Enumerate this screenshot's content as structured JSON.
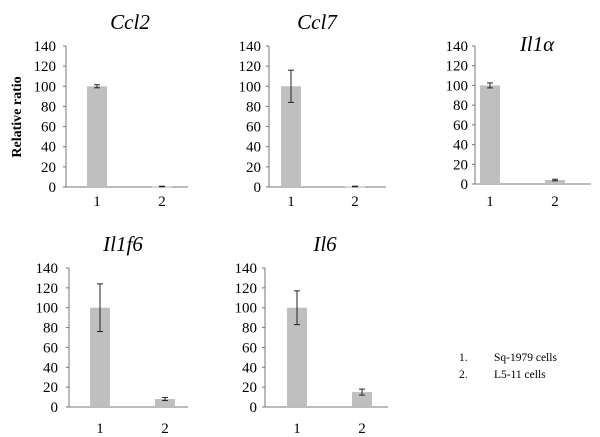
{
  "ylabel": "Relative ratio",
  "legend": [
    {
      "num": "1.",
      "label": "Sq-1979 cells"
    },
    {
      "num": "2.",
      "label": "L5-11 cells"
    }
  ],
  "chart_data": [
    {
      "type": "bar",
      "title": "Ccl2",
      "categories": [
        "1",
        "2"
      ],
      "values": [
        100,
        0.5
      ],
      "errors": [
        1.5,
        0.3
      ],
      "ylim": [
        0,
        140
      ],
      "ticks": [
        0,
        20,
        40,
        60,
        80,
        100,
        120,
        140
      ],
      "bar_color": "#bfbfbf"
    },
    {
      "type": "bar",
      "title": "Ccl7",
      "categories": [
        "1",
        "2"
      ],
      "values": [
        100,
        0.5
      ],
      "errors": [
        16,
        0.3
      ],
      "ylim": [
        0,
        140
      ],
      "ticks": [
        0,
        20,
        40,
        60,
        80,
        100,
        120,
        140
      ],
      "bar_color": "#bfbfbf"
    },
    {
      "type": "bar",
      "title": "Il1α",
      "categories": [
        "1",
        "2"
      ],
      "values": [
        100,
        4
      ],
      "errors": [
        2.5,
        0.8
      ],
      "ylim": [
        0,
        140
      ],
      "ticks": [
        0,
        20,
        40,
        60,
        80,
        100,
        120,
        140
      ],
      "bar_color": "#bfbfbf"
    },
    {
      "type": "bar",
      "title": "Il1f6",
      "categories": [
        "1",
        "2"
      ],
      "values": [
        100,
        8
      ],
      "errors": [
        24,
        1.5
      ],
      "ylim": [
        0,
        140
      ],
      "ticks": [
        0,
        20,
        40,
        60,
        80,
        100,
        120,
        140
      ],
      "bar_color": "#bfbfbf"
    },
    {
      "type": "bar",
      "title": "Il6",
      "categories": [
        "1",
        "2"
      ],
      "values": [
        100,
        15
      ],
      "errors": [
        17,
        3
      ],
      "ylim": [
        0,
        140
      ],
      "ticks": [
        0,
        20,
        40,
        60,
        80,
        100,
        120,
        140
      ],
      "bar_color": "#bfbfbf"
    }
  ]
}
